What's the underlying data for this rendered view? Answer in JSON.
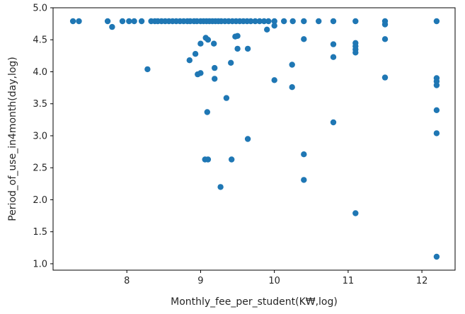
{
  "chart_data": {
    "type": "scatter",
    "title": "",
    "xlabel": "Monthly_fee_per_student(K₩,log)",
    "ylabel": "Period_of_use_in4month(day,log)",
    "xlim": [
      7.0,
      12.45
    ],
    "ylim": [
      0.9,
      5.0
    ],
    "x_ticks": [
      8,
      9,
      10,
      11,
      12
    ],
    "y_ticks": [
      1.0,
      1.5,
      2.0,
      2.5,
      3.0,
      3.5,
      4.0,
      4.5,
      5.0
    ],
    "x_tick_labels": [
      "8",
      "9",
      "10",
      "11",
      "12"
    ],
    "y_tick_labels": [
      "1.0",
      "1.5",
      "2.0",
      "2.5",
      "3.0",
      "3.5",
      "4.0",
      "4.5",
      "5.0"
    ],
    "grid": false,
    "legend": "none",
    "marker_color": "#1f77b4",
    "points": [
      [
        7.27,
        4.79
      ],
      [
        7.35,
        4.79
      ],
      [
        7.74,
        4.79
      ],
      [
        7.8,
        4.7
      ],
      [
        7.94,
        4.79
      ],
      [
        8.03,
        4.79
      ],
      [
        8.1,
        4.79
      ],
      [
        8.2,
        4.79
      ],
      [
        8.33,
        4.79
      ],
      [
        8.38,
        4.79
      ],
      [
        8.42,
        4.79
      ],
      [
        8.47,
        4.79
      ],
      [
        8.52,
        4.79
      ],
      [
        8.57,
        4.79
      ],
      [
        8.62,
        4.79
      ],
      [
        8.67,
        4.79
      ],
      [
        8.72,
        4.79
      ],
      [
        8.77,
        4.79
      ],
      [
        8.82,
        4.79
      ],
      [
        8.86,
        4.79
      ],
      [
        8.91,
        4.79
      ],
      [
        8.95,
        4.79
      ],
      [
        9.0,
        4.79
      ],
      [
        9.04,
        4.79
      ],
      [
        9.08,
        4.79
      ],
      [
        9.12,
        4.79
      ],
      [
        9.16,
        4.79
      ],
      [
        9.2,
        4.79
      ],
      [
        9.24,
        4.79
      ],
      [
        9.28,
        4.79
      ],
      [
        9.33,
        4.79
      ],
      [
        9.38,
        4.79
      ],
      [
        9.43,
        4.79
      ],
      [
        9.48,
        4.79
      ],
      [
        9.53,
        4.79
      ],
      [
        9.58,
        4.79
      ],
      [
        9.63,
        4.79
      ],
      [
        9.68,
        4.79
      ],
      [
        9.74,
        4.79
      ],
      [
        9.8,
        4.79
      ],
      [
        9.86,
        4.79
      ],
      [
        9.92,
        4.79
      ],
      [
        10.0,
        4.79
      ],
      [
        10.13,
        4.79
      ],
      [
        10.25,
        4.79
      ],
      [
        10.4,
        4.79
      ],
      [
        10.6,
        4.79
      ],
      [
        10.8,
        4.79
      ],
      [
        11.1,
        4.79
      ],
      [
        11.5,
        4.79
      ],
      [
        12.2,
        4.79
      ],
      [
        9.9,
        4.66
      ],
      [
        10.0,
        4.72
      ],
      [
        9.07,
        4.53
      ],
      [
        9.1,
        4.5
      ],
      [
        9.5,
        4.56
      ],
      [
        9.47,
        4.55
      ],
      [
        9.18,
        4.44
      ],
      [
        9.0,
        4.44
      ],
      [
        9.5,
        4.36
      ],
      [
        9.64,
        4.36
      ],
      [
        8.93,
        4.28
      ],
      [
        8.85,
        4.18
      ],
      [
        9.41,
        4.14
      ],
      [
        9.19,
        4.06
      ],
      [
        8.28,
        4.04
      ],
      [
        9.0,
        3.98
      ],
      [
        8.96,
        3.96
      ],
      [
        9.19,
        3.89
      ],
      [
        10.0,
        3.87
      ],
      [
        10.24,
        4.11
      ],
      [
        10.24,
        3.76
      ],
      [
        10.4,
        4.51
      ],
      [
        10.8,
        4.43
      ],
      [
        10.8,
        4.23
      ],
      [
        11.1,
        4.45
      ],
      [
        11.1,
        4.4
      ],
      [
        11.1,
        4.35
      ],
      [
        11.1,
        4.3
      ],
      [
        11.5,
        4.74
      ],
      [
        11.5,
        4.51
      ],
      [
        11.5,
        3.91
      ],
      [
        12.2,
        3.9
      ],
      [
        12.2,
        3.85
      ],
      [
        12.2,
        3.79
      ],
      [
        9.35,
        3.59
      ],
      [
        12.2,
        3.4
      ],
      [
        9.09,
        3.37
      ],
      [
        10.8,
        3.21
      ],
      [
        12.2,
        3.04
      ],
      [
        9.64,
        2.95
      ],
      [
        10.4,
        2.71
      ],
      [
        9.06,
        2.63
      ],
      [
        9.1,
        2.63
      ],
      [
        9.42,
        2.63
      ],
      [
        10.4,
        2.31
      ],
      [
        9.27,
        2.2
      ],
      [
        11.1,
        1.79
      ],
      [
        12.2,
        1.11
      ]
    ]
  }
}
